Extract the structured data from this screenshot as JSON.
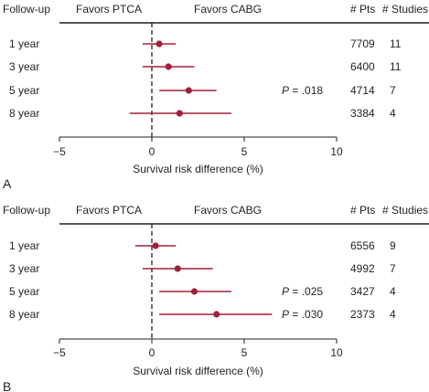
{
  "panel_labels": [
    "A",
    "B"
  ],
  "headers": {
    "followup": "Follow-up",
    "favors_left": "Favors PTCA",
    "favors_right": "Favors CABG",
    "pts": "# Pts",
    "studies": "# Studies"
  },
  "colors": {
    "marker": "#a3203a",
    "line": "#a3203a",
    "axis": "#231f20"
  },
  "chart_data": [
    {
      "type": "forest",
      "panel": "A",
      "xlabel": "Survival risk difference (%)",
      "xlim": [
        -5,
        10
      ],
      "xticks": [
        -5,
        0,
        5,
        10
      ],
      "xtick_labels": [
        "−5",
        "0",
        "5",
        "10"
      ],
      "reference_line": 0,
      "rows": [
        {
          "label": "1 year",
          "estimate": 0.4,
          "ci": [
            -0.5,
            1.3
          ],
          "pts": "7709",
          "studies": "11",
          "p_prefix": "",
          "p_value": ""
        },
        {
          "label": "3 year",
          "estimate": 0.9,
          "ci": [
            -0.5,
            2.3
          ],
          "pts": "6400",
          "studies": "11",
          "p_prefix": "",
          "p_value": ""
        },
        {
          "label": "5 year",
          "estimate": 2.0,
          "ci": [
            0.4,
            3.5
          ],
          "pts": "4714",
          "studies": "7",
          "p_prefix": "P",
          "p_value": " = .018"
        },
        {
          "label": "8 year",
          "estimate": 1.5,
          "ci": [
            -1.2,
            4.3
          ],
          "pts": "3384",
          "studies": "4",
          "p_prefix": "",
          "p_value": ""
        }
      ]
    },
    {
      "type": "forest",
      "panel": "B",
      "xlabel": "Survival risk difference (%)",
      "xlim": [
        -5,
        10
      ],
      "xticks": [
        -5,
        0,
        5,
        10
      ],
      "xtick_labels": [
        "−5",
        "0",
        "5",
        "10"
      ],
      "reference_line": 0,
      "rows": [
        {
          "label": "1 year",
          "estimate": 0.2,
          "ci": [
            -0.9,
            1.3
          ],
          "pts": "6556",
          "studies": "9",
          "p_prefix": "",
          "p_value": ""
        },
        {
          "label": "3 year",
          "estimate": 1.4,
          "ci": [
            -0.5,
            3.3
          ],
          "pts": "4992",
          "studies": "7",
          "p_prefix": "",
          "p_value": ""
        },
        {
          "label": "5 year",
          "estimate": 2.3,
          "ci": [
            0.4,
            4.3
          ],
          "pts": "3427",
          "studies": "4",
          "p_prefix": "P",
          "p_value": " = .025"
        },
        {
          "label": "8 year",
          "estimate": 3.5,
          "ci": [
            0.4,
            6.5
          ],
          "pts": "2373",
          "studies": "4",
          "p_prefix": "P",
          "p_value": " = .030"
        }
      ]
    }
  ]
}
